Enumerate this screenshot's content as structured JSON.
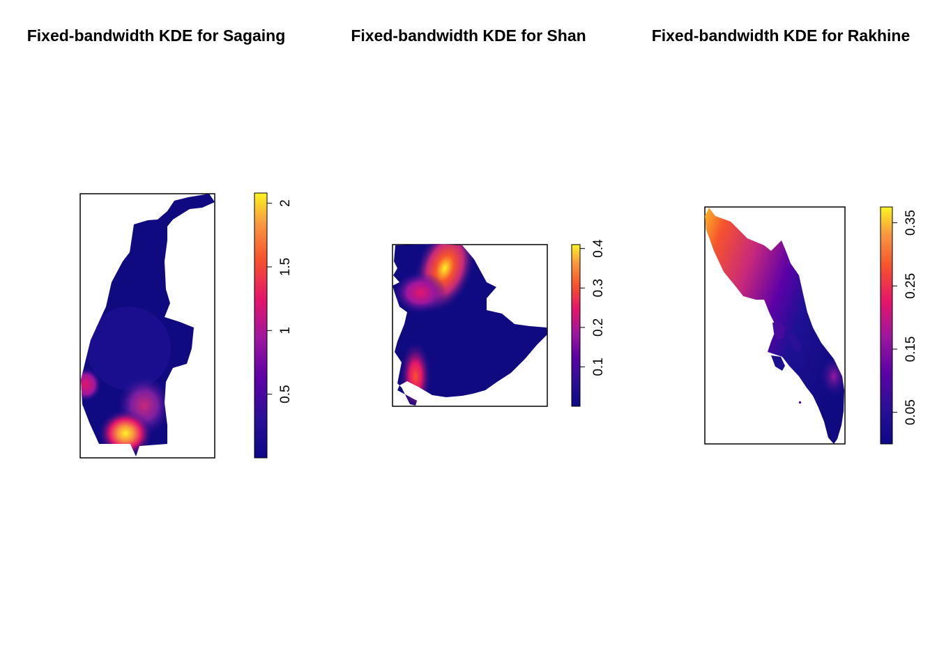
{
  "maps": [
    {
      "id": "sagaing",
      "title": "Fixed-bandwidth KDE for Sagaing",
      "legend": {
        "ticks": [
          {
            "value": 0.5,
            "label": "0.5"
          },
          {
            "value": 1,
            "label": "1"
          },
          {
            "value": 1.5,
            "label": "1.5"
          },
          {
            "value": 2,
            "label": "2"
          }
        ],
        "range": [
          0.0,
          2.08
        ]
      }
    },
    {
      "id": "shan",
      "title": "Fixed-bandwidth KDE for Shan",
      "legend": {
        "ticks": [
          {
            "value": 0.1,
            "label": "0.1"
          },
          {
            "value": 0.2,
            "label": "0.2"
          },
          {
            "value": 0.3,
            "label": "0.3"
          },
          {
            "value": 0.4,
            "label": "0.4"
          }
        ],
        "range": [
          0.0,
          0.41
        ]
      }
    },
    {
      "id": "rakhine",
      "title": "Fixed-bandwidth KDE for Rakhine",
      "legend": {
        "ticks": [
          {
            "value": 0.05,
            "label": "0.05"
          },
          {
            "value": 0.15,
            "label": "0.15"
          },
          {
            "value": 0.25,
            "label": "0.25"
          },
          {
            "value": 0.35,
            "label": "0.35"
          }
        ],
        "range": [
          0.0,
          0.375
        ]
      }
    }
  ],
  "colors": {
    "low": "#0d0887",
    "mid": "#e4156b",
    "high": "#fcf323",
    "frame": "#000000"
  }
}
